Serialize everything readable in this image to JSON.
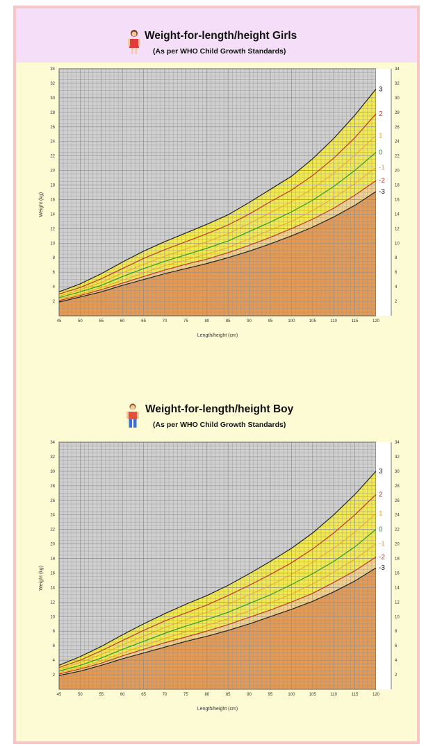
{
  "chart_data": [
    {
      "type": "area",
      "title": "Weight-for-length/height Girls",
      "subtitle": "(As per WHO Child Growth Standards)",
      "xlabel": "Length/height (cm)",
      "ylabel": "Weight (kg)",
      "xlim": [
        45,
        120
      ],
      "ylim": [
        0,
        34
      ],
      "x_ticks": [
        "45",
        "50",
        "55",
        "60",
        "65",
        "70",
        "75",
        "80",
        "85",
        "90",
        "95",
        "100",
        "105",
        "110",
        "115",
        "120"
      ],
      "y_ticks": [
        "2",
        "4",
        "6",
        "8",
        "10",
        "12",
        "14",
        "16",
        "18",
        "20",
        "22",
        "24",
        "26",
        "28",
        "30",
        "32",
        "34"
      ],
      "grid": true,
      "x": [
        45,
        50,
        55,
        60,
        65,
        70,
        75,
        80,
        85,
        90,
        95,
        100,
        105,
        110,
        115,
        120
      ],
      "series": [
        {
          "name": "3",
          "color": "#222222",
          "values": [
            3.3,
            4.4,
            5.8,
            7.4,
            8.9,
            10.2,
            11.4,
            12.6,
            13.9,
            15.6,
            17.4,
            19.2,
            21.6,
            24.4,
            27.6,
            31.2
          ]
        },
        {
          "name": "2",
          "color": "#c0392b",
          "values": [
            3.0,
            3.9,
            5.1,
            6.5,
            7.9,
            9.1,
            10.2,
            11.3,
            12.5,
            14.0,
            15.7,
            17.3,
            19.3,
            21.7,
            24.5,
            27.8
          ]
        },
        {
          "name": "1",
          "color": "#f0a030",
          "values": [
            2.7,
            3.6,
            4.6,
            5.9,
            7.1,
            8.2,
            9.2,
            10.2,
            11.3,
            12.7,
            14.2,
            15.7,
            17.5,
            19.6,
            22.1,
            24.8
          ]
        },
        {
          "name": "0",
          "color": "#2e9a2e",
          "values": [
            2.5,
            3.3,
            4.2,
            5.4,
            6.5,
            7.5,
            8.4,
            9.3,
            10.3,
            11.6,
            12.9,
            14.3,
            15.9,
            17.8,
            20.0,
            22.5
          ]
        },
        {
          "name": "-1",
          "color": "#f0a030",
          "values": [
            2.3,
            3.0,
            3.9,
            4.9,
            5.9,
            6.9,
            7.7,
            8.5,
            9.4,
            10.6,
            11.8,
            13.0,
            14.5,
            16.2,
            18.2,
            20.4
          ]
        },
        {
          "name": "-2",
          "color": "#c0392b",
          "values": [
            2.1,
            2.8,
            3.6,
            4.5,
            5.4,
            6.3,
            7.1,
            7.8,
            8.7,
            9.7,
            10.8,
            12.0,
            13.3,
            14.8,
            16.6,
            18.6
          ]
        },
        {
          "name": "-3",
          "color": "#222222",
          "values": [
            1.9,
            2.6,
            3.3,
            4.2,
            5.0,
            5.8,
            6.5,
            7.2,
            8.0,
            8.9,
            9.9,
            11.0,
            12.2,
            13.6,
            15.2,
            17.1
          ]
        }
      ]
    },
    {
      "type": "area",
      "title": "Weight-for-length/height Boy",
      "subtitle": "(As per WHO Child Growth Standards)",
      "xlabel": "Length/height (cm)",
      "ylabel": "Weight (kg)",
      "xlim": [
        45,
        120
      ],
      "ylim": [
        0,
        34
      ],
      "x_ticks": [
        "45",
        "50",
        "55",
        "60",
        "65",
        "70",
        "75",
        "80",
        "85",
        "90",
        "95",
        "100",
        "105",
        "110",
        "115",
        "120"
      ],
      "y_ticks": [
        "2",
        "4",
        "6",
        "8",
        "10",
        "12",
        "14",
        "16",
        "18",
        "20",
        "22",
        "24",
        "26",
        "28",
        "30",
        "32",
        "34"
      ],
      "grid": true,
      "x": [
        45,
        50,
        55,
        60,
        65,
        70,
        75,
        80,
        85,
        90,
        95,
        100,
        105,
        110,
        115,
        120
      ],
      "series": [
        {
          "name": "3",
          "color": "#222222",
          "values": [
            3.3,
            4.5,
            5.9,
            7.5,
            9.0,
            10.4,
            11.7,
            12.9,
            14.3,
            15.9,
            17.6,
            19.4,
            21.5,
            24.0,
            26.8,
            30.0
          ]
        },
        {
          "name": "2",
          "color": "#c0392b",
          "values": [
            3.0,
            4.0,
            5.3,
            6.7,
            8.1,
            9.4,
            10.5,
            11.6,
            12.9,
            14.3,
            15.8,
            17.4,
            19.3,
            21.5,
            24.0,
            26.8
          ]
        },
        {
          "name": "1",
          "color": "#f0a030",
          "values": [
            2.7,
            3.7,
            4.8,
            6.1,
            7.3,
            8.5,
            9.6,
            10.6,
            11.7,
            13.0,
            14.3,
            15.8,
            17.5,
            19.4,
            21.6,
            24.2
          ]
        },
        {
          "name": "0",
          "color": "#2e9a2e",
          "values": [
            2.5,
            3.3,
            4.3,
            5.5,
            6.6,
            7.7,
            8.7,
            9.6,
            10.6,
            11.8,
            13.0,
            14.4,
            15.9,
            17.6,
            19.6,
            22.0
          ]
        },
        {
          "name": "-1",
          "color": "#f0a030",
          "values": [
            2.3,
            3.0,
            3.9,
            5.0,
            6.0,
            7.0,
            7.9,
            8.8,
            9.7,
            10.8,
            11.9,
            13.1,
            14.5,
            16.1,
            17.9,
            20.0
          ]
        },
        {
          "name": "-2",
          "color": "#c0392b",
          "values": [
            2.1,
            2.8,
            3.6,
            4.6,
            5.5,
            6.4,
            7.2,
            8.0,
            8.9,
            9.9,
            10.9,
            12.0,
            13.2,
            14.7,
            16.3,
            18.2
          ]
        },
        {
          "name": "-3",
          "color": "#222222",
          "values": [
            1.9,
            2.5,
            3.3,
            4.2,
            5.0,
            5.8,
            6.6,
            7.3,
            8.1,
            9.0,
            10.0,
            11.0,
            12.1,
            13.4,
            14.9,
            16.7
          ]
        }
      ]
    }
  ],
  "colors": {
    "grid_bg": "#cfcfcf",
    "normal_band": "#f2e94e",
    "below_band": "#e39a55",
    "grid_line": "#8f8f8f"
  },
  "icons": [
    "girl-icon",
    "boy-icon"
  ]
}
